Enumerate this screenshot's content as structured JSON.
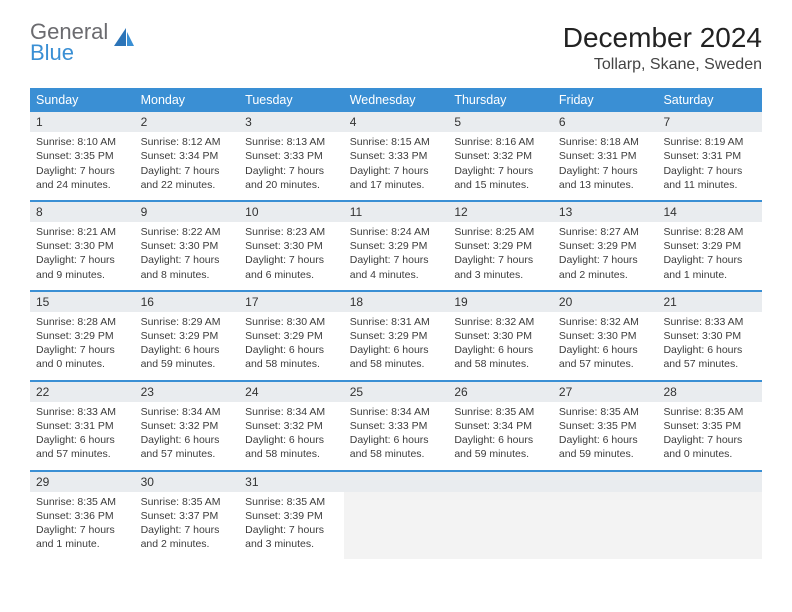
{
  "brand": {
    "top": "General",
    "bottom": "Blue"
  },
  "title": "December 2024",
  "location": "Tollarp, Skane, Sweden",
  "colors": {
    "header_bg": "#3a8fd4",
    "header_text": "#ffffff",
    "daynum_bg": "#e9ecef",
    "week_divider": "#3a8fd4",
    "body_text": "#3c3c3c",
    "brand_top": "#6b6b6f",
    "brand_bottom": "#3a8fd4",
    "empty_bg": "#f3f3f3",
    "page_bg": "#ffffff"
  },
  "typography": {
    "title_size_pt": 21,
    "location_size_pt": 12,
    "weekday_size_pt": 9.5,
    "daynum_size_pt": 9,
    "body_size_pt": 8
  },
  "layout": {
    "columns": 7,
    "rows": 5,
    "start_weekday": "Sunday"
  },
  "weekdays": [
    "Sunday",
    "Monday",
    "Tuesday",
    "Wednesday",
    "Thursday",
    "Friday",
    "Saturday"
  ],
  "days": [
    {
      "n": "1",
      "sr": "Sunrise: 8:10 AM",
      "ss": "Sunset: 3:35 PM",
      "dl1": "Daylight: 7 hours",
      "dl2": "and 24 minutes."
    },
    {
      "n": "2",
      "sr": "Sunrise: 8:12 AM",
      "ss": "Sunset: 3:34 PM",
      "dl1": "Daylight: 7 hours",
      "dl2": "and 22 minutes."
    },
    {
      "n": "3",
      "sr": "Sunrise: 8:13 AM",
      "ss": "Sunset: 3:33 PM",
      "dl1": "Daylight: 7 hours",
      "dl2": "and 20 minutes."
    },
    {
      "n": "4",
      "sr": "Sunrise: 8:15 AM",
      "ss": "Sunset: 3:33 PM",
      "dl1": "Daylight: 7 hours",
      "dl2": "and 17 minutes."
    },
    {
      "n": "5",
      "sr": "Sunrise: 8:16 AM",
      "ss": "Sunset: 3:32 PM",
      "dl1": "Daylight: 7 hours",
      "dl2": "and 15 minutes."
    },
    {
      "n": "6",
      "sr": "Sunrise: 8:18 AM",
      "ss": "Sunset: 3:31 PM",
      "dl1": "Daylight: 7 hours",
      "dl2": "and 13 minutes."
    },
    {
      "n": "7",
      "sr": "Sunrise: 8:19 AM",
      "ss": "Sunset: 3:31 PM",
      "dl1": "Daylight: 7 hours",
      "dl2": "and 11 minutes."
    },
    {
      "n": "8",
      "sr": "Sunrise: 8:21 AM",
      "ss": "Sunset: 3:30 PM",
      "dl1": "Daylight: 7 hours",
      "dl2": "and 9 minutes."
    },
    {
      "n": "9",
      "sr": "Sunrise: 8:22 AM",
      "ss": "Sunset: 3:30 PM",
      "dl1": "Daylight: 7 hours",
      "dl2": "and 8 minutes."
    },
    {
      "n": "10",
      "sr": "Sunrise: 8:23 AM",
      "ss": "Sunset: 3:30 PM",
      "dl1": "Daylight: 7 hours",
      "dl2": "and 6 minutes."
    },
    {
      "n": "11",
      "sr": "Sunrise: 8:24 AM",
      "ss": "Sunset: 3:29 PM",
      "dl1": "Daylight: 7 hours",
      "dl2": "and 4 minutes."
    },
    {
      "n": "12",
      "sr": "Sunrise: 8:25 AM",
      "ss": "Sunset: 3:29 PM",
      "dl1": "Daylight: 7 hours",
      "dl2": "and 3 minutes."
    },
    {
      "n": "13",
      "sr": "Sunrise: 8:27 AM",
      "ss": "Sunset: 3:29 PM",
      "dl1": "Daylight: 7 hours",
      "dl2": "and 2 minutes."
    },
    {
      "n": "14",
      "sr": "Sunrise: 8:28 AM",
      "ss": "Sunset: 3:29 PM",
      "dl1": "Daylight: 7 hours",
      "dl2": "and 1 minute."
    },
    {
      "n": "15",
      "sr": "Sunrise: 8:28 AM",
      "ss": "Sunset: 3:29 PM",
      "dl1": "Daylight: 7 hours",
      "dl2": "and 0 minutes."
    },
    {
      "n": "16",
      "sr": "Sunrise: 8:29 AM",
      "ss": "Sunset: 3:29 PM",
      "dl1": "Daylight: 6 hours",
      "dl2": "and 59 minutes."
    },
    {
      "n": "17",
      "sr": "Sunrise: 8:30 AM",
      "ss": "Sunset: 3:29 PM",
      "dl1": "Daylight: 6 hours",
      "dl2": "and 58 minutes."
    },
    {
      "n": "18",
      "sr": "Sunrise: 8:31 AM",
      "ss": "Sunset: 3:29 PM",
      "dl1": "Daylight: 6 hours",
      "dl2": "and 58 minutes."
    },
    {
      "n": "19",
      "sr": "Sunrise: 8:32 AM",
      "ss": "Sunset: 3:30 PM",
      "dl1": "Daylight: 6 hours",
      "dl2": "and 58 minutes."
    },
    {
      "n": "20",
      "sr": "Sunrise: 8:32 AM",
      "ss": "Sunset: 3:30 PM",
      "dl1": "Daylight: 6 hours",
      "dl2": "and 57 minutes."
    },
    {
      "n": "21",
      "sr": "Sunrise: 8:33 AM",
      "ss": "Sunset: 3:30 PM",
      "dl1": "Daylight: 6 hours",
      "dl2": "and 57 minutes."
    },
    {
      "n": "22",
      "sr": "Sunrise: 8:33 AM",
      "ss": "Sunset: 3:31 PM",
      "dl1": "Daylight: 6 hours",
      "dl2": "and 57 minutes."
    },
    {
      "n": "23",
      "sr": "Sunrise: 8:34 AM",
      "ss": "Sunset: 3:32 PM",
      "dl1": "Daylight: 6 hours",
      "dl2": "and 57 minutes."
    },
    {
      "n": "24",
      "sr": "Sunrise: 8:34 AM",
      "ss": "Sunset: 3:32 PM",
      "dl1": "Daylight: 6 hours",
      "dl2": "and 58 minutes."
    },
    {
      "n": "25",
      "sr": "Sunrise: 8:34 AM",
      "ss": "Sunset: 3:33 PM",
      "dl1": "Daylight: 6 hours",
      "dl2": "and 58 minutes."
    },
    {
      "n": "26",
      "sr": "Sunrise: 8:35 AM",
      "ss": "Sunset: 3:34 PM",
      "dl1": "Daylight: 6 hours",
      "dl2": "and 59 minutes."
    },
    {
      "n": "27",
      "sr": "Sunrise: 8:35 AM",
      "ss": "Sunset: 3:35 PM",
      "dl1": "Daylight: 6 hours",
      "dl2": "and 59 minutes."
    },
    {
      "n": "28",
      "sr": "Sunrise: 8:35 AM",
      "ss": "Sunset: 3:35 PM",
      "dl1": "Daylight: 7 hours",
      "dl2": "and 0 minutes."
    },
    {
      "n": "29",
      "sr": "Sunrise: 8:35 AM",
      "ss": "Sunset: 3:36 PM",
      "dl1": "Daylight: 7 hours",
      "dl2": "and 1 minute."
    },
    {
      "n": "30",
      "sr": "Sunrise: 8:35 AM",
      "ss": "Sunset: 3:37 PM",
      "dl1": "Daylight: 7 hours",
      "dl2": "and 2 minutes."
    },
    {
      "n": "31",
      "sr": "Sunrise: 8:35 AM",
      "ss": "Sunset: 3:39 PM",
      "dl1": "Daylight: 7 hours",
      "dl2": "and 3 minutes."
    }
  ]
}
